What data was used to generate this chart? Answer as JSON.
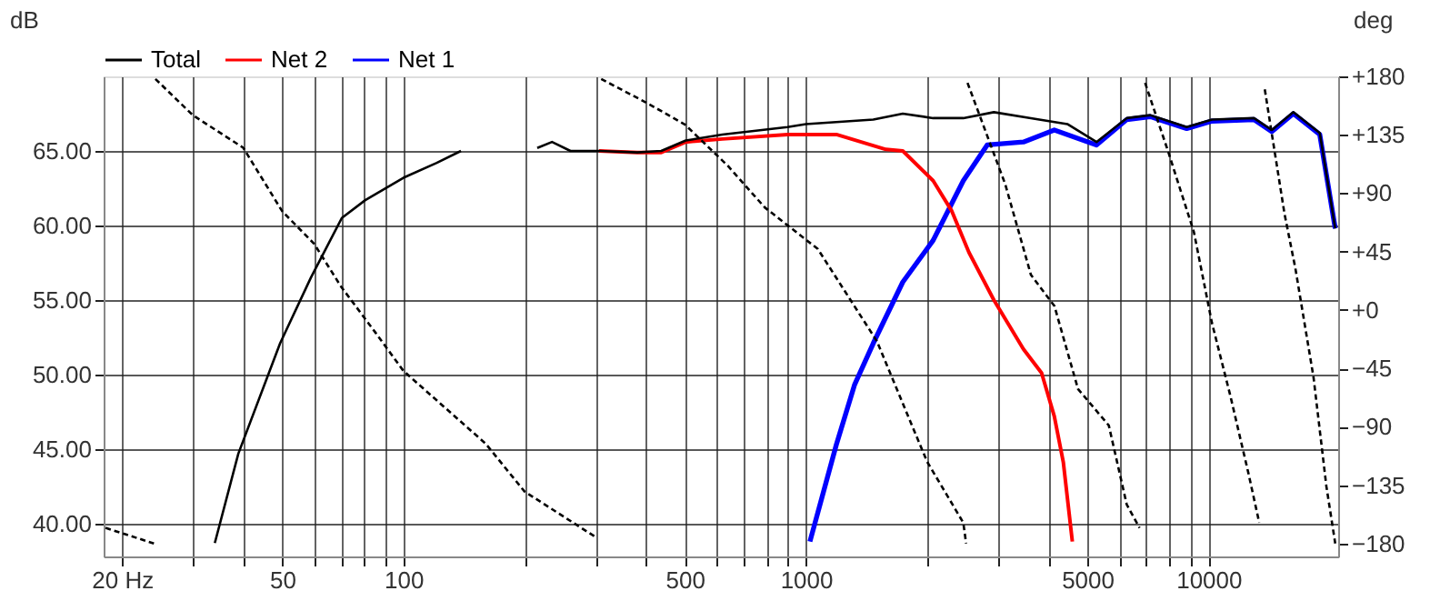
{
  "chart_data": {
    "type": "line",
    "ylabel": "dB",
    "y2label": "deg",
    "log": "x",
    "grid": true,
    "legend": "top",
    "xlim": [
      18,
      21000
    ],
    "ylim": [
      37.8,
      70
    ],
    "y2lim": [
      -190,
      180
    ],
    "xticks": [
      {
        "value": 20,
        "label": "20 Hz"
      },
      {
        "value": 30,
        "label": null
      },
      {
        "value": 40,
        "label": null
      },
      50,
      {
        "value": 60,
        "label": null
      },
      {
        "value": 70,
        "label": null
      },
      {
        "value": 80,
        "label": null
      },
      {
        "value": 90,
        "label": null
      },
      100,
      {
        "value": 200,
        "label": null
      },
      {
        "value": 300,
        "label": null
      },
      {
        "value": 400,
        "label": null
      },
      500,
      {
        "value": 600,
        "label": null
      },
      {
        "value": 700,
        "label": null
      },
      {
        "value": 800,
        "label": null
      },
      {
        "value": 900,
        "label": null
      },
      {
        "value": 1000,
        "label": "1000"
      },
      {
        "value": 2000,
        "label": null
      },
      {
        "value": 3000,
        "label": null
      },
      {
        "value": 4000,
        "label": null
      },
      {
        "value": 5000,
        "label": "5000"
      },
      {
        "value": 6000,
        "label": null
      },
      {
        "value": 7000,
        "label": null
      },
      {
        "value": 8000,
        "label": null
      },
      {
        "value": 9000,
        "label": null
      },
      {
        "value": 10000,
        "label": "10000"
      }
    ],
    "yticks": [
      {
        "value": 40,
        "label": "40.00"
      },
      {
        "value": 45,
        "label": "45.00"
      },
      {
        "value": 50,
        "label": "50.00"
      },
      {
        "value": 55,
        "label": "55.00"
      },
      {
        "value": 60,
        "label": "60.00"
      },
      {
        "value": 65,
        "label": "65.00"
      }
    ],
    "y2ticks": [
      -180,
      -135,
      -90,
      -45,
      {
        "value": 0,
        "label": "+0"
      },
      {
        "value": 45,
        "label": "+45"
      },
      {
        "value": 90,
        "label": "+90"
      },
      {
        "value": 135,
        "label": "+135"
      },
      {
        "value": 180,
        "label": "+180"
      }
    ],
    "series": [
      {
        "name": "Total",
        "color": "#000000",
        "x": [
          34,
          38.9,
          49.4,
          58.9,
          70.3,
          80.4,
          100,
          121,
          139,
          180,
          215,
          234,
          260,
          306,
          381,
          437,
          503,
          620,
          900,
          1000,
          1470,
          1740,
          2070,
          2460,
          2930,
          3620,
          4460,
          5270,
          6265,
          7170,
          8830,
          10200,
          12970,
          14370,
          16250,
          18900,
          20650
        ],
        "values": [
          38.7,
          44.7,
          52.1,
          56.5,
          60.5,
          61.7,
          63.2,
          64.2,
          65,
          null,
          65.2,
          65.6,
          65,
          65,
          64.9,
          65,
          65.7,
          66.1,
          66.6,
          66.8,
          67.1,
          67.5,
          67.2,
          67.2,
          67.6,
          67.2,
          66.8,
          65.6,
          67.2,
          67.4,
          66.6,
          67.1,
          67.2,
          66.4,
          67.6,
          66.2,
          59.8
        ]
      },
      {
        "name": "Net 2",
        "color": "#ff0000",
        "x": [
          306,
          381,
          437,
          503,
          620,
          900,
          1000,
          1190,
          1580,
          1740,
          2070,
          2300,
          2540,
          2930,
          3470,
          3850,
          4140,
          4360,
          4590
        ],
        "values": [
          65,
          64.9,
          64.9,
          65.6,
          65.8,
          66.1,
          66.1,
          66.1,
          65.1,
          65,
          63,
          61,
          58.2,
          55,
          51.7,
          50.1,
          47.2,
          44.1,
          38.8
        ]
      },
      {
        "name": "Net 1",
        "color": "#0000ff",
        "x": [
          1023,
          1190,
          1320,
          1470,
          1740,
          2070,
          2460,
          2820,
          3470,
          4140,
          5270,
          6265,
          7170,
          8830,
          10200,
          12970,
          14370,
          16250,
          18900,
          20650
        ],
        "values": [
          38.8,
          45.3,
          49.3,
          52.1,
          56.2,
          59,
          63,
          65.4,
          65.6,
          66.4,
          65.4,
          67.1,
          67.3,
          66.5,
          67,
          67.1,
          66.3,
          67.5,
          66.1,
          59.8
        ]
      },
      {
        "color": "#000000",
        "axis": "y2",
        "line_style": "dashed",
        "x": [
          18.2,
          24
        ],
        "values": [
          -168,
          -180
        ]
      },
      {
        "color": "#000000",
        "axis": "y2",
        "line_style": "dashed",
        "x": [
          24.2,
          30,
          40,
          50,
          60,
          70,
          85,
          100,
          160,
          200,
          300
        ],
        "values": [
          178,
          150,
          125,
          76,
          51,
          18,
          -17,
          -47,
          -103,
          -140,
          -175
        ]
      },
      {
        "color": "#000000",
        "axis": "y2",
        "line_style": "dashed",
        "x": [
          310,
          400,
          500,
          640,
          790,
          1070,
          1500,
          2000,
          2460,
          2500
        ],
        "values": [
          178,
          160,
          143,
          111,
          79,
          47,
          -24,
          -117,
          -164,
          -180
        ]
      },
      {
        "color": "#000000",
        "axis": "y2",
        "line_style": "dashed",
        "x": [
          2520,
          3126,
          3622,
          4143,
          4742,
          5654,
          6265,
          6742
        ],
        "values": [
          175,
          97,
          27,
          3,
          -61,
          -89,
          -150,
          -168
        ]
      },
      {
        "color": "#000000",
        "axis": "y2",
        "line_style": "dashed",
        "x": [
          6960,
          7960,
          9200,
          10200,
          11330,
          12570,
          13370
        ],
        "values": [
          175,
          121,
          60,
          -10,
          -66,
          -126,
          -164
        ]
      },
      {
        "color": "#000000",
        "axis": "y2",
        "line_style": "dashed",
        "x": [
          13800,
          15450,
          16440,
          18240,
          19630,
          20650
        ],
        "values": [
          170,
          74,
          32,
          -52,
          -136,
          -180
        ]
      }
    ]
  }
}
